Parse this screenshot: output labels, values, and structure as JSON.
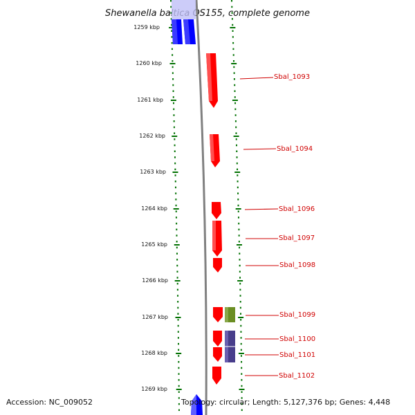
{
  "title": "Shewanella baltica OS155, complete genome",
  "accession": "Accession: NC_009052",
  "summary": "Topology: circular; Length: 5,127,376 bp; Genes: 4,448",
  "colors": {
    "cds_forward": "#ff0000",
    "cds_reverse": "#0000ff",
    "other_green": "#6b8e23",
    "other_purple": "#483d8b",
    "backbone": "#888888",
    "ruler": "#007000",
    "label": "#d00000"
  },
  "kbp_ticks": [
    "1259 kbp",
    "1260 kbp",
    "1261 kbp",
    "1262 kbp",
    "1263 kbp",
    "1264 kbp",
    "1265 kbp",
    "1266 kbp",
    "1267 kbp",
    "1268 kbp",
    "1269 kbp"
  ],
  "gene_labels": [
    "Sbal_1093",
    "Sbal_1094",
    "Sbal_1096",
    "Sbal_1097",
    "Sbal_1098",
    "Sbal_1099",
    "Sbal_1100",
    "Sbal_1101",
    "Sbal_1102"
  ]
}
